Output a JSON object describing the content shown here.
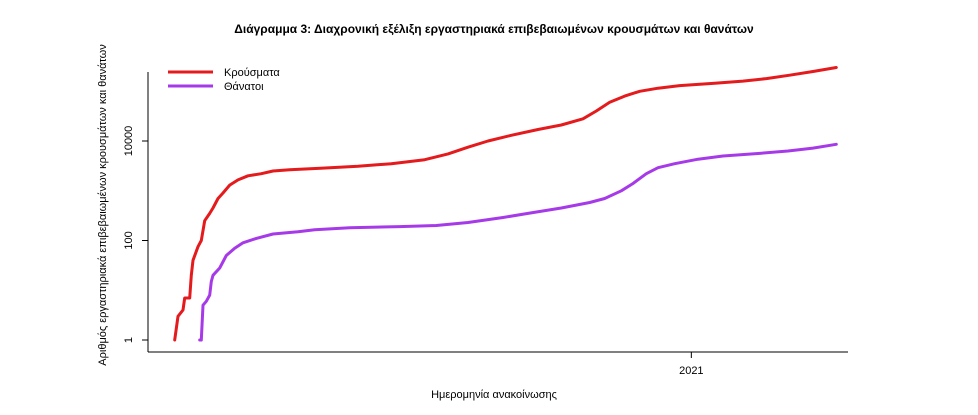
{
  "chart_data": {
    "type": "line",
    "title": "Διάγραμμα 3: Διαχρονική εξέλιξη εργαστηριακά επιβεβαιωμένων κρουσμάτων και θανάτων",
    "xlabel": "Ημερομηνία ανακοίνωσης",
    "ylabel": "Αριθμός εργαστηριακά επιβεβαιωμένων κρουσμάτων και θανάτων",
    "y_scale": "log",
    "ylim": [
      1,
      300000
    ],
    "xlim": [
      "2020-02-10",
      "2021-04-05"
    ],
    "x_ticks": [
      {
        "date": "2021-01-01",
        "label": "2021"
      }
    ],
    "y_ticks": [
      {
        "value": 1,
        "label": "1"
      },
      {
        "value": 100,
        "label": "100"
      },
      {
        "value": 10000,
        "label": "10000"
      }
    ],
    "grid": false,
    "legend_position": "top-left",
    "series": [
      {
        "name": "Κρούσματα",
        "color": "#e41a1c",
        "points": [
          [
            "2020-02-26",
            1
          ],
          [
            "2020-02-28",
            3
          ],
          [
            "2020-03-02",
            4
          ],
          [
            "2020-03-03",
            7
          ],
          [
            "2020-03-06",
            7
          ],
          [
            "2020-03-07",
            20
          ],
          [
            "2020-03-08",
            40
          ],
          [
            "2020-03-11",
            75
          ],
          [
            "2020-03-13",
            100
          ],
          [
            "2020-03-15",
            250
          ],
          [
            "2020-03-18",
            350
          ],
          [
            "2020-03-20",
            450
          ],
          [
            "2020-03-23",
            700
          ],
          [
            "2020-03-26",
            900
          ],
          [
            "2020-03-30",
            1300
          ],
          [
            "2020-04-04",
            1650
          ],
          [
            "2020-04-10",
            2000
          ],
          [
            "2020-04-18",
            2200
          ],
          [
            "2020-04-25",
            2500
          ],
          [
            "2020-05-05",
            2650
          ],
          [
            "2020-05-25",
            2850
          ],
          [
            "2020-06-15",
            3100
          ],
          [
            "2020-07-05",
            3500
          ],
          [
            "2020-07-25",
            4200
          ],
          [
            "2020-08-08",
            5500
          ],
          [
            "2020-08-20",
            7500
          ],
          [
            "2020-09-01",
            10000
          ],
          [
            "2020-09-15",
            13000
          ],
          [
            "2020-10-01",
            17000
          ],
          [
            "2020-10-15",
            21000
          ],
          [
            "2020-10-28",
            28000
          ],
          [
            "2020-11-05",
            40000
          ],
          [
            "2020-11-13",
            60000
          ],
          [
            "2020-11-22",
            80000
          ],
          [
            "2020-12-01",
            100000
          ],
          [
            "2020-12-12",
            115000
          ],
          [
            "2020-12-25",
            130000
          ],
          [
            "2021-01-15",
            145000
          ],
          [
            "2021-02-01",
            160000
          ],
          [
            "2021-02-15",
            180000
          ],
          [
            "2021-03-01",
            210000
          ],
          [
            "2021-03-15",
            250000
          ],
          [
            "2021-03-29",
            300000
          ]
        ]
      },
      {
        "name": "Θάνατοι",
        "color": "#a63ae8",
        "points": [
          [
            "2020-03-12",
            1
          ],
          [
            "2020-03-13",
            1
          ],
          [
            "2020-03-14",
            5
          ],
          [
            "2020-03-16",
            6
          ],
          [
            "2020-03-18",
            8
          ],
          [
            "2020-03-19",
            15
          ],
          [
            "2020-03-20",
            20
          ],
          [
            "2020-03-24",
            28
          ],
          [
            "2020-03-28",
            50
          ],
          [
            "2020-04-02",
            70
          ],
          [
            "2020-04-07",
            90
          ],
          [
            "2020-04-15",
            110
          ],
          [
            "2020-04-25",
            135
          ],
          [
            "2020-05-10",
            150
          ],
          [
            "2020-05-20",
            165
          ],
          [
            "2020-06-10",
            180
          ],
          [
            "2020-07-10",
            190
          ],
          [
            "2020-08-01",
            200
          ],
          [
            "2020-08-20",
            230
          ],
          [
            "2020-09-10",
            290
          ],
          [
            "2020-09-25",
            350
          ],
          [
            "2020-10-15",
            450
          ],
          [
            "2020-11-01",
            580
          ],
          [
            "2020-11-10",
            700
          ],
          [
            "2020-11-20",
            1000
          ],
          [
            "2020-11-27",
            1400
          ],
          [
            "2020-12-05",
            2200
          ],
          [
            "2020-12-12",
            2900
          ],
          [
            "2020-12-22",
            3500
          ],
          [
            "2021-01-05",
            4300
          ],
          [
            "2021-01-20",
            5000
          ],
          [
            "2021-02-10",
            5600
          ],
          [
            "2021-02-28",
            6300
          ],
          [
            "2021-03-15",
            7200
          ],
          [
            "2021-03-29",
            8600
          ]
        ]
      }
    ]
  }
}
